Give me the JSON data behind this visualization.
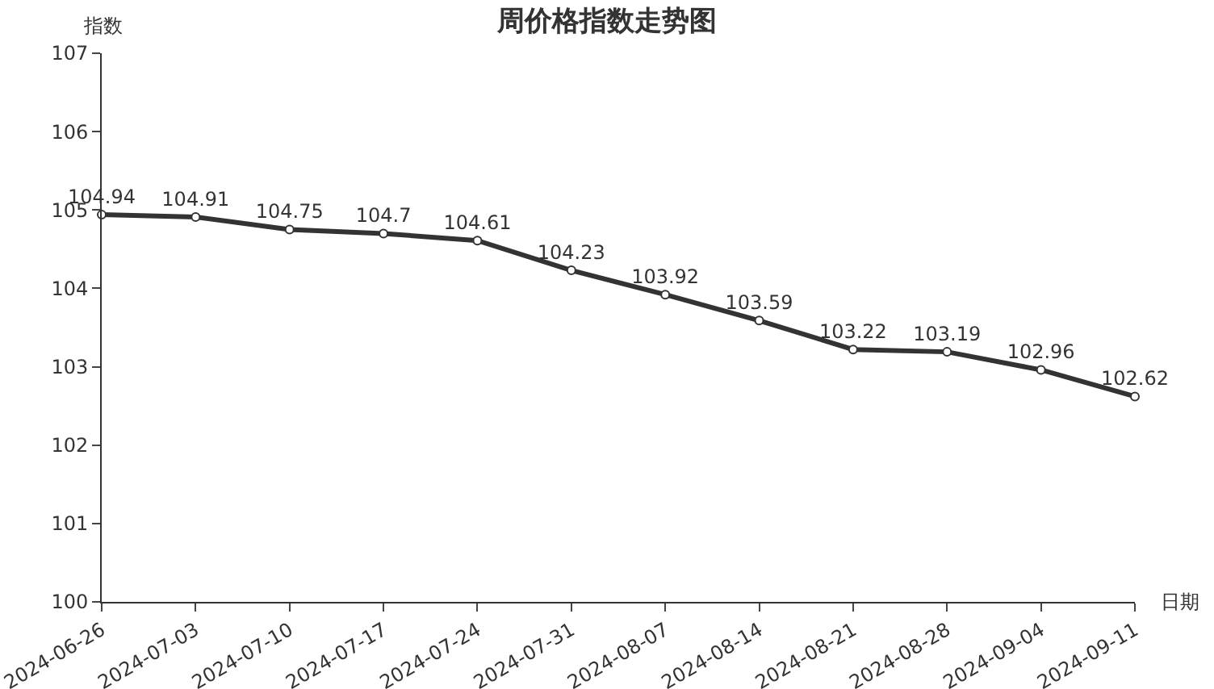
{
  "chart_data": {
    "type": "line",
    "title": "周价格指数走势图",
    "ylabel": "指数",
    "xlabel": "日期",
    "categories": [
      "2024-06-26",
      "2024-07-03",
      "2024-07-10",
      "2024-07-17",
      "2024-07-24",
      "2024-07-31",
      "2024-08-07",
      "2024-08-14",
      "2024-08-21",
      "2024-08-28",
      "2024-09-04",
      "2024-09-11"
    ],
    "series": [
      {
        "color": "#333333",
        "values": [
          104.94,
          104.91,
          104.75,
          104.7,
          104.61,
          104.23,
          103.92,
          103.59,
          103.22,
          103.19,
          102.96,
          102.62
        ]
      }
    ],
    "ylim": [
      100,
      107
    ],
    "yticks": [
      100,
      101,
      102,
      103,
      104,
      105,
      106,
      107
    ],
    "data_labels": true,
    "marker": "circle",
    "line_style": "solid",
    "legend": false
  }
}
